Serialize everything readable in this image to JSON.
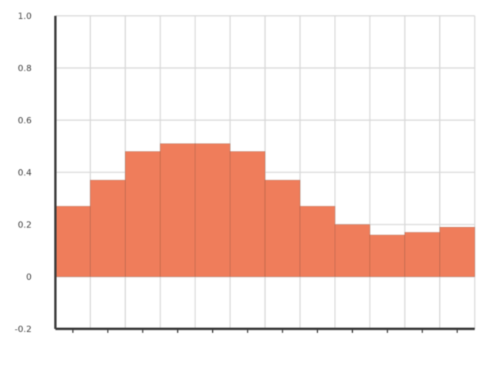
{
  "chart_data": {
    "type": "bar",
    "title": "",
    "xlabel": "",
    "ylabel": "",
    "categories": [
      "",
      "",
      "",
      "",
      "",
      "",
      "",
      "",
      "",
      "",
      "",
      ""
    ],
    "values": [
      0.27,
      0.37,
      0.48,
      0.51,
      0.51,
      0.48,
      0.37,
      0.27,
      0.2,
      0.16,
      0.17,
      0.19
    ],
    "ylim": [
      -0.2,
      1.0
    ],
    "yticks": [
      -0.2,
      0,
      0.2,
      0.4,
      0.6,
      0.8,
      1.0
    ],
    "ytick_labels": [
      "-0.2",
      "0",
      "0.2",
      "0.4",
      "0.6",
      "0.8",
      "1.0"
    ],
    "grid": true,
    "legend": "none",
    "colors": {
      "bar": "#ef7d5b",
      "grid": "#d9d9d9",
      "axis": "#3a3a3a"
    }
  }
}
